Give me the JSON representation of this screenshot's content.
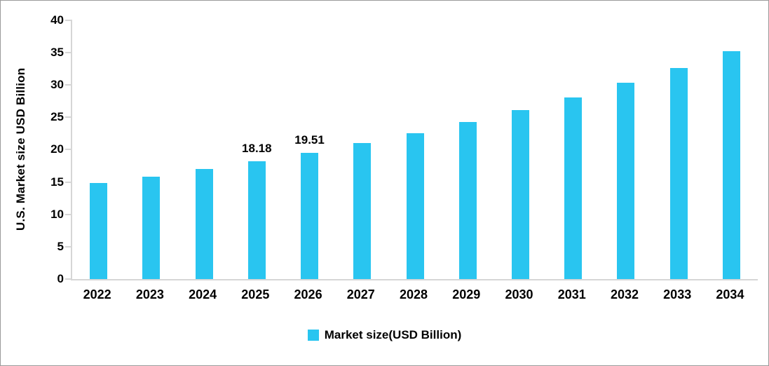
{
  "chart_data": {
    "type": "bar",
    "title": "",
    "categories": [
      "2022",
      "2023",
      "2024",
      "2025",
      "2026",
      "2027",
      "2028",
      "2029",
      "2030",
      "2031",
      "2032",
      "2033",
      "2034"
    ],
    "values": [
      14.8,
      15.85,
      17.05,
      18.18,
      19.51,
      21.0,
      22.6,
      24.3,
      26.1,
      28.1,
      30.3,
      32.6,
      35.2
    ],
    "data_labels": [
      "",
      "",
      "",
      "18.18",
      "19.51",
      "",
      "",
      "",
      "",
      "",
      "",
      "",
      ""
    ],
    "ylabel": "U.S. Market size USD Billion",
    "xlabel": "",
    "ylim": [
      0,
      40
    ],
    "ytick_step": 5,
    "grid": false,
    "legend_position": "bottom",
    "legend": {
      "label": "Market size(USD Billion)",
      "color": "#29C5F0"
    },
    "bar_color": "#29C5F0",
    "axis_color": "#d6d6d6",
    "text_color": "#000000"
  }
}
